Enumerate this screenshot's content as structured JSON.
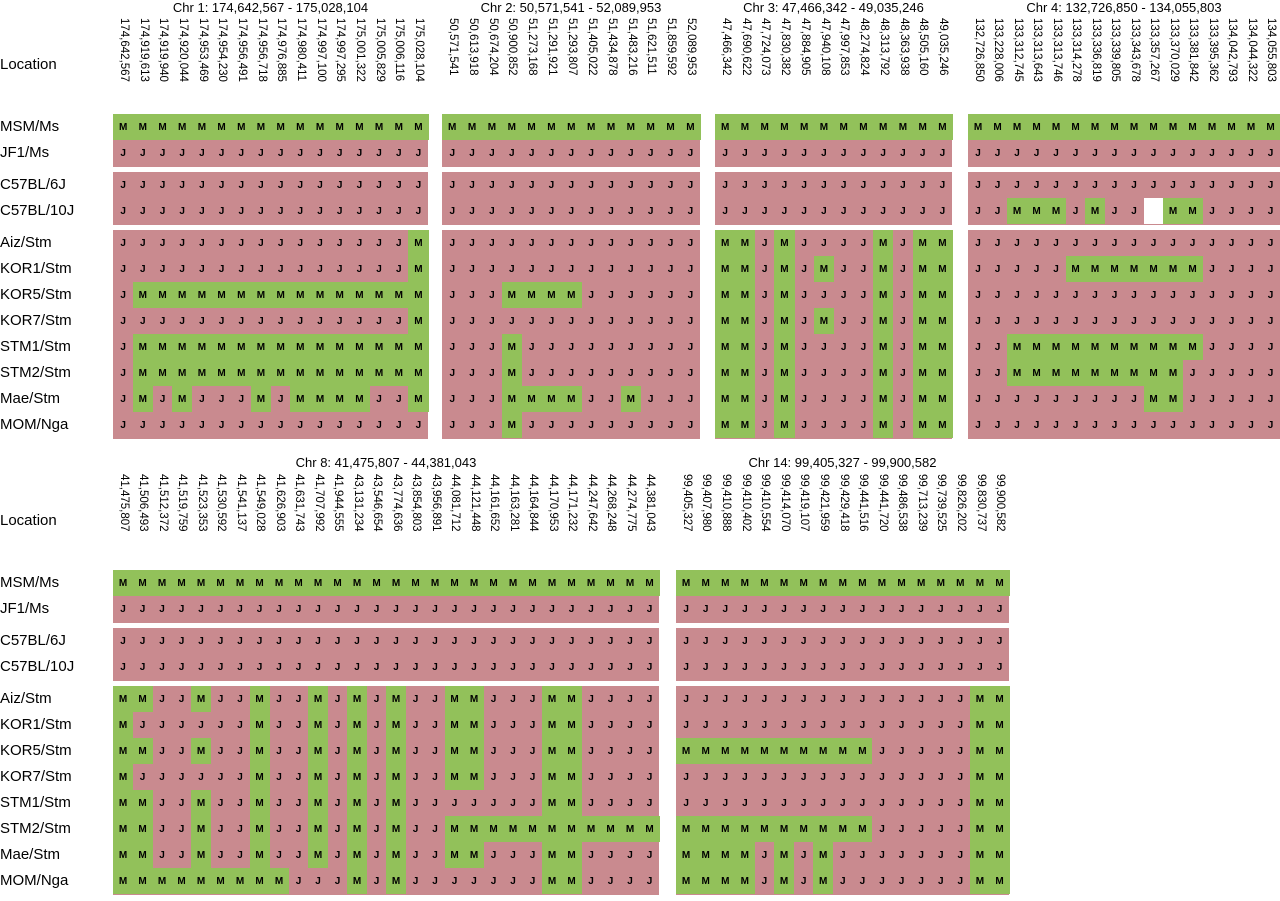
{
  "location_label": "Location",
  "strain_groups": [
    [
      "MSM/Ms",
      "JF1/Ms"
    ],
    [
      "C57BL/6J",
      "C57BL/10J"
    ],
    [
      "Aiz/Stm",
      "KOR1/Stm",
      "KOR5/Stm",
      "KOR7/Stm",
      "STM1/Stm",
      "STM2/Stm",
      "Mae/Stm",
      "MOM/Nga"
    ]
  ],
  "colors": {
    "msm_allele": "#92c15a",
    "jf1_allele": "#c98a8f",
    "missing": "#ffffff"
  },
  "allele_codes": {
    "M": "MSM/Ms-type allele",
    "J": "JF1/Ms-type allele",
    "": "no data"
  },
  "blocks": [
    {
      "title": "Chr 1: 174,642,567 - 175,028,104",
      "positions": [
        "174,642,567",
        "174,919,613",
        "174,919,940",
        "174,920,044",
        "174,953,469",
        "174,954,230",
        "174,956,491",
        "174,956,718",
        "174,976,885",
        "174,980,411",
        "174,997,100",
        "174,997,295",
        "175,001,322",
        "175,005,829",
        "175,006,116",
        "175,028,104"
      ],
      "genotypes": [
        "MMMMMMMMMMMMMMMM",
        "JJJJJJJJJJJJJJJJ",
        "JJJJJJJJJJJJJJJJ",
        "JJJJJJJJJJJJJJJJ",
        "JJJJJJJJJJJJJJJM",
        "JJJJJJJJJJJJJJJM",
        "JMMMMMMMMMMMMMMM",
        "JJJJJJJJJJJJJJJM",
        "JMMMMMMMMMMMMMMM",
        "JMMMMMMMMMMMMMMM",
        "JMJMJJJMJMMMMJJM",
        "JJJJJJJJJJJJJJJJ"
      ]
    },
    {
      "title": "Chr 2: 50,571,541 - 52,089,953",
      "positions": [
        "50,571,541",
        "50,613,918",
        "50,674,204",
        "50,900,852",
        "51,273,168",
        "51,291,921",
        "51,293,807",
        "51,405,022",
        "51,434,878",
        "51,483,216",
        "51,621,511",
        "51,859,592",
        "52,089,953"
      ],
      "genotypes": [
        "MMMMMMMMMMMMM",
        "JJJJJJJJJJJJJ",
        "JJJJJJJJJJJJJ",
        "JJJJJJJJJJJJJ",
        "JJJJJJJJJJJJJ",
        "JJJJJJJJJJJJJ",
        "JJJMMMMJJJJJJ",
        "JJJJJJJJJJJJJ",
        "JJJMJJJJJJJJJ",
        "JJJMJJJJJJJJJ",
        "JJJMMMMJJMJJJ",
        "JJJMJJJJJJJJJ"
      ]
    },
    {
      "title": "Chr 3: 47,466,342 - 49,035,246",
      "positions": [
        "47,466,342",
        "47,690,622",
        "47,724,073",
        "47,830,382",
        "47,884,905",
        "47,940,108",
        "47,997,853",
        "48,274,824",
        "48,313,792",
        "48,363,938",
        "48,505,160",
        "49,035,246"
      ],
      "genotypes": [
        "MMMMMMMMMMMM",
        "JJJJJJJJJJJJ",
        "JJJJJJJJJJJJ",
        "JJJJJJJJJJJJ",
        "MMJMJJJJMJMM",
        "MMJMJMJJMJMM",
        "MMJMJJJJMJMM",
        "MMJMJMJJMJMM",
        "MMJMJJJJMJMM",
        "MMJMJJJJMJMM",
        "MMJMJJJJMJMM",
        "MMJMJJJJMJMM"
      ]
    },
    {
      "title": "Chr 4: 132,726,850 - 134,055,803",
      "positions": [
        "132,726,850",
        "133,228,006",
        "133,312,745",
        "133,313,643",
        "133,313,746",
        "133,314,278",
        "133,336,819",
        "133,339,805",
        "133,343,678",
        "133,357,267",
        "133,370,029",
        "133,381,842",
        "133,395,362",
        "134,042,793",
        "134,044,322",
        "134,055,803"
      ],
      "genotypes": [
        "MMMMMMMMMMMMMMMM",
        "JJJJJJJJJJJJJJJJ",
        "JJJJJJJJJJJJJJJJ",
        "JJMMMJMJJ-MMJJJJ",
        "JJJJJJJJJJJJJJJJ",
        "JJJJJMMMMMMMJJJJ",
        "JJJJJJJJJJJJJJJJ",
        "JJJJJJJJJJJJJJJJ",
        "JJMMMMMMMMMMJJJJ",
        "JJMMMMMMMMMJJJJJ",
        "JJJJJJJJJMMJJJJJ",
        "JJJJJJJJJJJJJJJJ"
      ]
    },
    {
      "title": "Chr 8: 41,475,807 - 44,381,043",
      "positions": [
        "41,475,807",
        "41,506,493",
        "41,512,372",
        "41,519,759",
        "41,523,353",
        "41,530,592",
        "41,541,137",
        "41,549,028",
        "41,626,903",
        "41,631,743",
        "41,707,992",
        "41,944,555",
        "43,131,234",
        "43,546,654",
        "43,774,636",
        "43,854,803",
        "43,956,891",
        "44,081,712",
        "44,121,448",
        "44,161,652",
        "44,163,281",
        "44,164,844",
        "44,170,953",
        "44,171,232",
        "44,247,642",
        "44,268,248",
        "44,274,775",
        "44,381,043"
      ],
      "genotypes": [
        "MMMMMMMMMMMMMMMMMMMMMMMMMMMM",
        "JJJJJJJJJJJJJJJJJJJJJJJJJJJJ",
        "JJJJJJJJJJJJJJJJJJJJJJJJJJJJ",
        "JJJJJJJJJJJJJJJJJJJJJJJJJJJJ",
        "MMJJMJJMJJMJMJMJJMMJJJMMJJJJ",
        "MJJJJJJMJJMJMJMJJMMJJJMMJJJJ",
        "MMJJMJJMJJMJMJMJJMMJJJMMJJJJ",
        "MJJJJJJMJJMJMJMJJMMJJJMMJJJJ",
        "MMJJMJJMJJMJMJMJJJJJJJMMJJJJ",
        "MMJJMJJMJJMJMJMJJMMMMMMMMMMM",
        "MMJJMJJMJJMJMJMJJMMJJJMMJJJJ",
        "MMMMMMMMMJJJMJMJJJJJJJMMJJJJ"
      ]
    },
    {
      "title": "Chr 14: 99,405,327 - 99,900,582",
      "positions": [
        "99,405,327",
        "99,407,980",
        "99,410,888",
        "99,410,402",
        "99,410,554",
        "99,414,070",
        "99,419,107",
        "99,421,959",
        "99,429,418",
        "99,441,516",
        "99,441,720",
        "99,486,538",
        "99,713,239",
        "99,739,525",
        "99,826,202",
        "99,830,737",
        "99,900,582"
      ],
      "genotypes": [
        "MMMMMMMMMMMMMMMMM",
        "JJJJJJJJJJJJJJJJJ",
        "JJJJJJJJJJJJJJJJJ",
        "JJJJJJJJJJJJJJJJJ",
        "JJJJJJJJJJJJJJJMM",
        "JJJJJJJJJJJJJJJMM",
        "MMMMMMMMMMJJJJJMM",
        "JJJJJJJJJJJJJJJMM",
        "JJJJJJJJJJJJJJJMM",
        "MMMMMMMMMMJJJJJMM",
        "MMMMJMJMJJJJJJJMM",
        "MMMMJMJMJJJJJJJMM"
      ]
    }
  ]
}
